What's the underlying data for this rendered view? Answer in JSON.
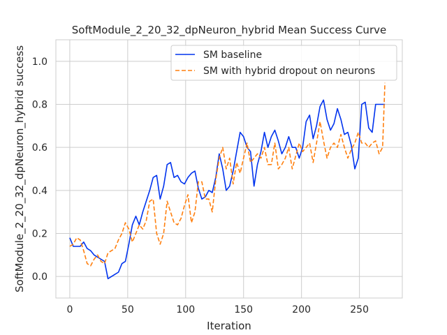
{
  "chart_data": {
    "type": "line",
    "title": "SoftModule_2_20_32_dpNeuron_hybrid Mean Success Curve",
    "xlabel": "Iteration",
    "ylabel": "SoftModule_2_20_32_dpNeuron_hybrid success",
    "xlim": [
      -12,
      287
    ],
    "ylim": [
      -0.1,
      1.1
    ],
    "xticks": [
      0,
      50,
      100,
      150,
      200,
      250
    ],
    "yticks": [
      0.0,
      0.2,
      0.4,
      0.6,
      0.8,
      1.0
    ],
    "xtick_labels": [
      "0",
      "50",
      "100",
      "150",
      "200",
      "250"
    ],
    "ytick_labels": [
      "0.0",
      "0.2",
      "0.4",
      "0.6",
      "0.8",
      "1.0"
    ],
    "grid": true,
    "legend_position": "top-right",
    "series": [
      {
        "name": "SM baseline",
        "color": "#0033ee",
        "dash": "solid",
        "x": [
          0,
          3,
          6,
          9,
          12,
          15,
          18,
          21,
          24,
          27,
          30,
          33,
          36,
          39,
          42,
          45,
          48,
          51,
          54,
          57,
          60,
          63,
          66,
          69,
          72,
          75,
          78,
          81,
          84,
          87,
          90,
          93,
          96,
          99,
          102,
          105,
          108,
          111,
          114,
          117,
          120,
          123,
          126,
          129,
          132,
          135,
          138,
          141,
          144,
          147,
          150,
          153,
          156,
          159,
          162,
          165,
          168,
          171,
          174,
          177,
          180,
          183,
          186,
          189,
          192,
          195,
          198,
          201,
          204,
          207,
          210,
          213,
          216,
          219,
          222,
          225,
          228,
          231,
          234,
          237,
          240,
          243,
          246,
          249,
          252,
          255,
          258,
          261,
          264,
          267,
          270,
          272
        ],
        "y": [
          0.18,
          0.14,
          0.14,
          0.14,
          0.16,
          0.13,
          0.12,
          0.1,
          0.09,
          0.08,
          0.07,
          -0.01,
          0.0,
          0.01,
          0.02,
          0.06,
          0.07,
          0.15,
          0.24,
          0.28,
          0.24,
          0.3,
          0.35,
          0.4,
          0.46,
          0.47,
          0.36,
          0.42,
          0.52,
          0.53,
          0.46,
          0.47,
          0.44,
          0.43,
          0.46,
          0.48,
          0.49,
          0.41,
          0.36,
          0.37,
          0.4,
          0.39,
          0.46,
          0.57,
          0.5,
          0.4,
          0.42,
          0.49,
          0.58,
          0.67,
          0.65,
          0.6,
          0.58,
          0.42,
          0.52,
          0.58,
          0.67,
          0.6,
          0.65,
          0.68,
          0.63,
          0.57,
          0.6,
          0.65,
          0.6,
          0.6,
          0.55,
          0.6,
          0.72,
          0.75,
          0.64,
          0.7,
          0.79,
          0.82,
          0.73,
          0.68,
          0.71,
          0.78,
          0.73,
          0.66,
          0.67,
          0.61,
          0.5,
          0.55,
          0.8,
          0.81,
          0.69,
          0.67,
          0.8,
          0.8,
          0.8,
          0.8
        ]
      },
      {
        "name": "SM with hybrid dropout on neurons",
        "color": "#ff7f0e",
        "dash": "dashed",
        "x": [
          0,
          3,
          6,
          9,
          12,
          15,
          18,
          21,
          24,
          27,
          30,
          33,
          36,
          39,
          42,
          45,
          48,
          51,
          54,
          57,
          60,
          63,
          66,
          69,
          72,
          75,
          78,
          81,
          84,
          87,
          90,
          93,
          96,
          99,
          102,
          105,
          108,
          111,
          114,
          117,
          120,
          123,
          126,
          129,
          132,
          135,
          138,
          141,
          144,
          147,
          150,
          153,
          156,
          159,
          162,
          165,
          168,
          171,
          174,
          177,
          180,
          183,
          186,
          189,
          192,
          195,
          198,
          201,
          204,
          207,
          210,
          213,
          216,
          219,
          222,
          225,
          228,
          231,
          234,
          237,
          240,
          243,
          246,
          249,
          252,
          255,
          258,
          261,
          264,
          267,
          270,
          272
        ],
        "y": [
          0.14,
          0.15,
          0.18,
          0.17,
          0.12,
          0.06,
          0.05,
          0.08,
          0.1,
          0.07,
          0.06,
          0.11,
          0.12,
          0.13,
          0.17,
          0.2,
          0.25,
          0.22,
          0.16,
          0.2,
          0.24,
          0.22,
          0.26,
          0.35,
          0.36,
          0.2,
          0.15,
          0.2,
          0.35,
          0.3,
          0.25,
          0.24,
          0.27,
          0.33,
          0.38,
          0.25,
          0.3,
          0.44,
          0.44,
          0.36,
          0.36,
          0.3,
          0.45,
          0.55,
          0.6,
          0.5,
          0.55,
          0.43,
          0.53,
          0.48,
          0.55,
          0.62,
          0.53,
          0.55,
          0.57,
          0.55,
          0.6,
          0.52,
          0.52,
          0.62,
          0.5,
          0.52,
          0.55,
          0.6,
          0.5,
          0.56,
          0.62,
          0.58,
          0.6,
          0.62,
          0.53,
          0.62,
          0.72,
          0.63,
          0.55,
          0.6,
          0.62,
          0.6,
          0.66,
          0.6,
          0.55,
          0.59,
          0.62,
          0.67,
          0.62,
          0.62,
          0.6,
          0.62,
          0.63,
          0.57,
          0.6,
          0.9
        ]
      }
    ]
  }
}
